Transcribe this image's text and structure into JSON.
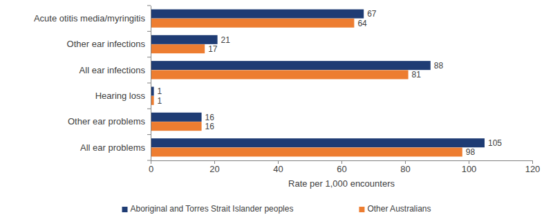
{
  "chart_data": {
    "type": "bar",
    "orientation": "horizontal",
    "categories": [
      "Acute otitis media/myringitis",
      "Other ear infections",
      "All ear infections",
      "Hearing loss",
      "Other ear problems",
      "All ear problems"
    ],
    "series": [
      {
        "name": "Aboriginal and Torres Strait Islander peoples",
        "color": "#1f3c74",
        "values": [
          67,
          21,
          88,
          1,
          16,
          105
        ]
      },
      {
        "name": "Other Australians",
        "color": "#ed7d31",
        "values": [
          64,
          17,
          81,
          1,
          16,
          98
        ]
      }
    ],
    "xlim": [
      0,
      120
    ],
    "xticks": [
      0,
      20,
      40,
      60,
      80,
      100,
      120
    ],
    "xlabel": "Rate per 1,000 encounters",
    "data_labels": true,
    "legend": "bottom",
    "grid": false
  }
}
